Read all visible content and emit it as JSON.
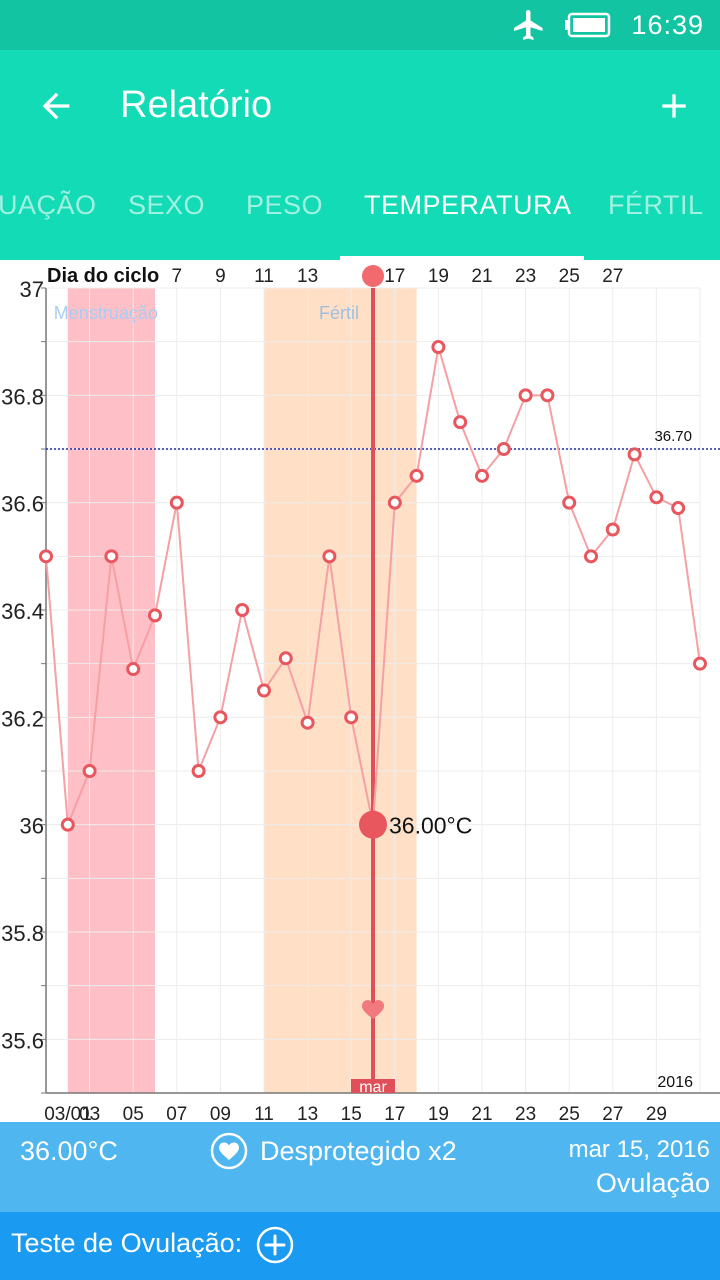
{
  "status_bar": {
    "time": "16:39",
    "icons": [
      "airplane-icon",
      "battery-icon"
    ]
  },
  "toolbar": {
    "title": "Relatório",
    "back_icon": "arrow-left-icon",
    "add_icon": "plus-icon"
  },
  "tabs": [
    {
      "label": "UAÇÃO",
      "active": false
    },
    {
      "label": "SEXO",
      "active": false
    },
    {
      "label": "PESO",
      "active": false
    },
    {
      "label": "TEMPERATURA",
      "active": true
    },
    {
      "label": "FÉRTIL",
      "active": false
    }
  ],
  "chart_data": {
    "type": "line",
    "top_label": "Dia do ciclo",
    "cycle_day_ticks": [
      "7",
      "9",
      "11",
      "13",
      "17",
      "19",
      "21",
      "23",
      "25",
      "27"
    ],
    "x_ticks": [
      "03/01",
      "03",
      "05",
      "07",
      "09",
      "11",
      "13",
      "15",
      "17",
      "19",
      "21",
      "23",
      "25",
      "27",
      "29"
    ],
    "y_ticks": [
      "37",
      "36.8",
      "36.6",
      "36.4",
      "36.2",
      "36",
      "35.8",
      "35.6"
    ],
    "ylim": [
      35.5,
      37.0
    ],
    "x_days": [
      0,
      1,
      2,
      3,
      4,
      5,
      6,
      7,
      8,
      9,
      10,
      11,
      12,
      13,
      14,
      15,
      16,
      17,
      18,
      19,
      20,
      21,
      22,
      23,
      24,
      25,
      26,
      27,
      28,
      29,
      30
    ],
    "values": [
      36.5,
      36.0,
      36.1,
      36.5,
      36.29,
      36.39,
      36.6,
      36.1,
      36.2,
      36.4,
      36.25,
      36.31,
      36.19,
      36.5,
      36.2,
      36.0,
      36.6,
      36.65,
      36.89,
      36.75,
      36.65,
      36.7,
      36.8,
      36.8,
      36.6,
      36.5,
      36.55,
      36.69,
      36.61,
      36.59,
      36.3
    ],
    "coverline": {
      "value": 36.7,
      "label": "36.70"
    },
    "regions": [
      {
        "label": "Menstruação",
        "from_day": 1,
        "to_day": 5,
        "color": "#ffbfc6"
      },
      {
        "label": "Fértil",
        "from_day": 10,
        "to_day": 17,
        "color": "#ffe0c6"
      }
    ],
    "selected": {
      "day": 15,
      "value": 36.0,
      "label": "36.00°C",
      "month_tag": "mar"
    },
    "year_label": "2016",
    "grid": true,
    "colors": {
      "line": "#f5a0a4",
      "marker": "#e8565e",
      "selection": "#e0505a",
      "coverline": "#1d2fb0"
    }
  },
  "info": {
    "temperature": "36.00°C",
    "intercourse": "Desprotegido x2",
    "date": "mar 15, 2016",
    "phase": "Ovulação"
  },
  "ovulation_test": {
    "label": "Teste de Ovulação:"
  }
}
